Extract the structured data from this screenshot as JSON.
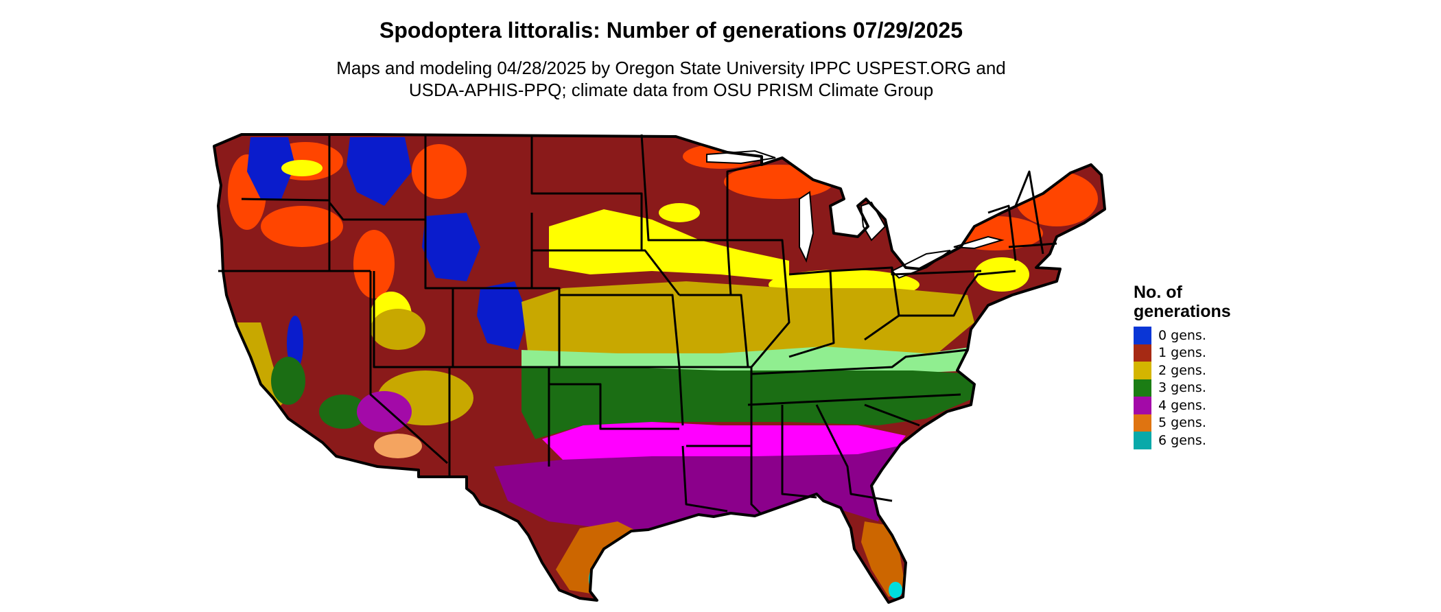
{
  "title": "Spodoptera littoralis: Number of generations 07/29/2025",
  "subtitle_line1": "Maps and modeling 04/28/2025 by Oregon State University IPPC USPEST.ORG and",
  "subtitle_line2": "USDA-APHIS-PPQ; climate data from OSU PRISM Climate Group",
  "legend": {
    "title_line1": "No. of",
    "title_line2": "generations",
    "items": [
      {
        "label": "0 gens.",
        "color": "#0a36d6"
      },
      {
        "label": "1 gens.",
        "color": "#a62a14"
      },
      {
        "label": "2 gens.",
        "color": "#d4b500"
      },
      {
        "label": "3 gens.",
        "color": "#1b7d14"
      },
      {
        "label": "4 gens.",
        "color": "#a30aa8"
      },
      {
        "label": "5 gens.",
        "color": "#df7411"
      },
      {
        "label": "6 gens.",
        "color": "#09a9a9"
      }
    ]
  },
  "map_colors": {
    "gen0_blue": "#0000cc",
    "gen1_darkred": "#8a1a1a",
    "gen1_orange": "#ff4500",
    "gen2_yellow": "#ffff00",
    "gen2_gold": "#c8a800",
    "gen3_lightgreen": "#90ee90",
    "gen3_green": "#006400",
    "gen4_magenta": "#ff00ff",
    "gen4_purple": "#8b008b",
    "gen5_orange": "#cc6600",
    "gen5_lightorange": "#f4a460",
    "gen6_cyan": "#00dddd",
    "boundary": "#000000"
  }
}
